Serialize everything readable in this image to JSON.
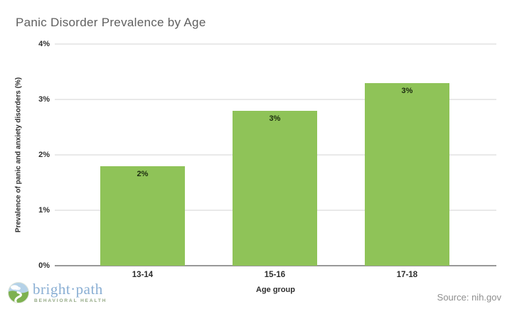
{
  "chart_data": {
    "type": "bar",
    "title": "Panic Disorder Prevalence by Age",
    "categories": [
      "13-14",
      "15-16",
      "17-18"
    ],
    "values": [
      1.8,
      2.8,
      3.3
    ],
    "bar_labels": [
      "2%",
      "3%",
      "3%"
    ],
    "xlabel": "Age group",
    "ylabel": "Prevalence of panic and anxiety disorders (%)",
    "ylim": [
      0,
      4
    ],
    "yticks": [
      "0%",
      "1%",
      "2%",
      "3%",
      "4%"
    ],
    "grid": true,
    "legend_position": "none",
    "bar_color": "#8FC358"
  },
  "footer": {
    "brand_name": "bright·path",
    "brand_tagline": "BEHAVIORAL HEALTH",
    "source": "Source: nih.gov"
  },
  "colors": {
    "bar": "#8FC358",
    "title_text": "#5f5f5f",
    "axis_text": "#2e2e2e",
    "bar_label_text": "#1c2d10",
    "gridline": "#e9e9e9",
    "baseline": "#999999",
    "source_text": "#8f8f8f",
    "brand_blue": "#89aed3",
    "brand_green": "#7db150",
    "brand_sky": "#b5d2e8"
  }
}
